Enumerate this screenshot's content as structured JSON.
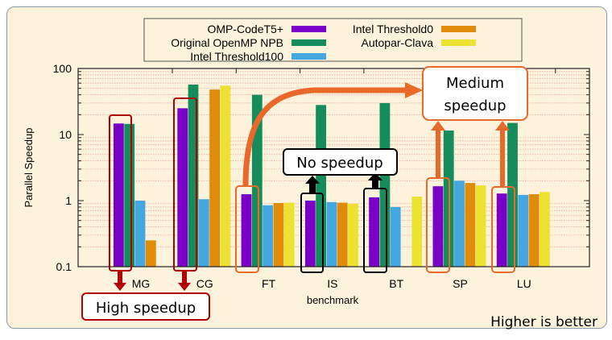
{
  "chart_data": {
    "type": "bar",
    "xlabel": "benchmark",
    "ylabel": "Parallel Speedup",
    "yscale": "log",
    "ylim": [
      0.1,
      100
    ],
    "yticks": [
      "0.1",
      "1",
      "10",
      "100"
    ],
    "grid": true,
    "legend_placement": "top",
    "categories": [
      "MG",
      "CG",
      "FT",
      "IS",
      "BT",
      "SP",
      "LU"
    ],
    "series": [
      {
        "name": "OMP-CodeT5+",
        "color": "#7a00c8",
        "values": [
          14.7,
          25,
          1.25,
          1.0,
          1.12,
          1.65,
          1.28
        ]
      },
      {
        "name": "Original OpenMP NPB",
        "color": "#148c5c",
        "values": [
          14.5,
          57,
          40,
          28,
          30,
          11.5,
          15
        ]
      },
      {
        "name": "Intel Threshold100",
        "color": "#45a6e0",
        "values": [
          1.0,
          1.05,
          0.85,
          0.95,
          0.8,
          2.0,
          1.22
        ]
      },
      {
        "name": "Intel Threshold0",
        "color": "#e08c0a",
        "values": [
          0.25,
          48,
          0.92,
          0.93,
          null,
          1.85,
          1.25
        ]
      },
      {
        "name": "Autopar-Clava",
        "color": "#ede232",
        "values": [
          null,
          55,
          0.93,
          0.9,
          1.15,
          1.7,
          1.35
        ]
      }
    ],
    "annotations": {
      "high": "High speedup",
      "medium": "Medium speedup",
      "none": "No speedup",
      "note": "Higher is better"
    }
  }
}
